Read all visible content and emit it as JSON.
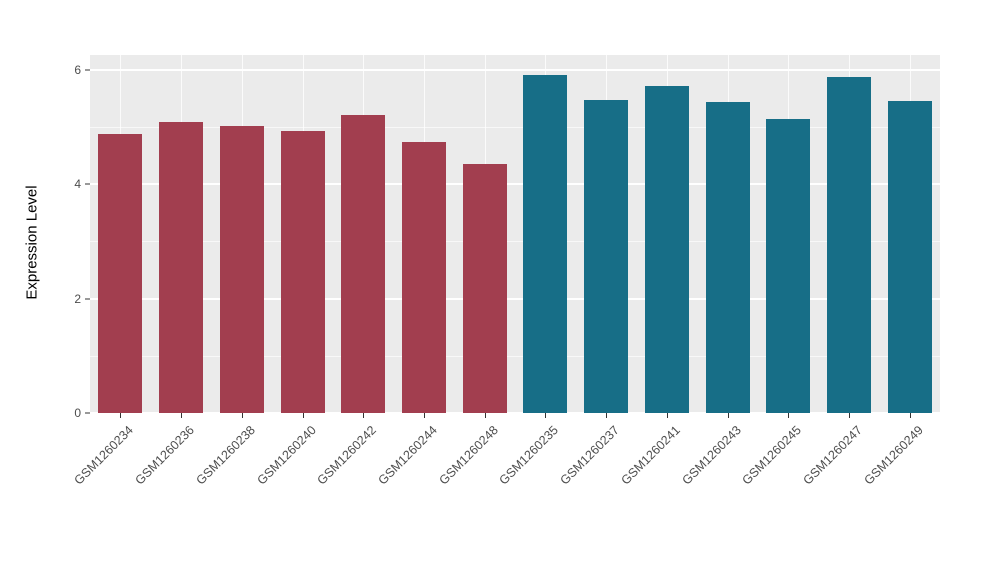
{
  "chart_data": {
    "type": "bar",
    "title": "",
    "xlabel": "",
    "ylabel": "Expression Level",
    "ylim": [
      0,
      6.26
    ],
    "yticks": [
      0,
      2,
      4,
      6
    ],
    "minor_ticks": [
      1,
      3,
      5
    ],
    "grid": "on",
    "legend": "none",
    "categories": [
      "GSM1260234",
      "GSM1260236",
      "GSM1260238",
      "GSM1260240",
      "GSM1260242",
      "GSM1260244",
      "GSM1260248",
      "GSM1260235",
      "GSM1260237",
      "GSM1260241",
      "GSM1260243",
      "GSM1260245",
      "GSM1260247",
      "GSM1260249"
    ],
    "values": [
      4.88,
      5.08,
      5.02,
      4.93,
      5.21,
      4.74,
      4.36,
      5.91,
      5.48,
      5.71,
      5.44,
      5.14,
      5.88,
      5.46
    ],
    "group_of": [
      "A",
      "A",
      "A",
      "A",
      "A",
      "A",
      "A",
      "B",
      "B",
      "B",
      "B",
      "B",
      "B",
      "B"
    ],
    "group_colors": {
      "A": "#A23E4F",
      "B": "#176E87"
    }
  },
  "colors": {
    "panel_bg": "#EBEBEB",
    "grid": "#FFFFFF",
    "tick_text": "#4D4D4D",
    "axis_title_text": "#000000"
  }
}
